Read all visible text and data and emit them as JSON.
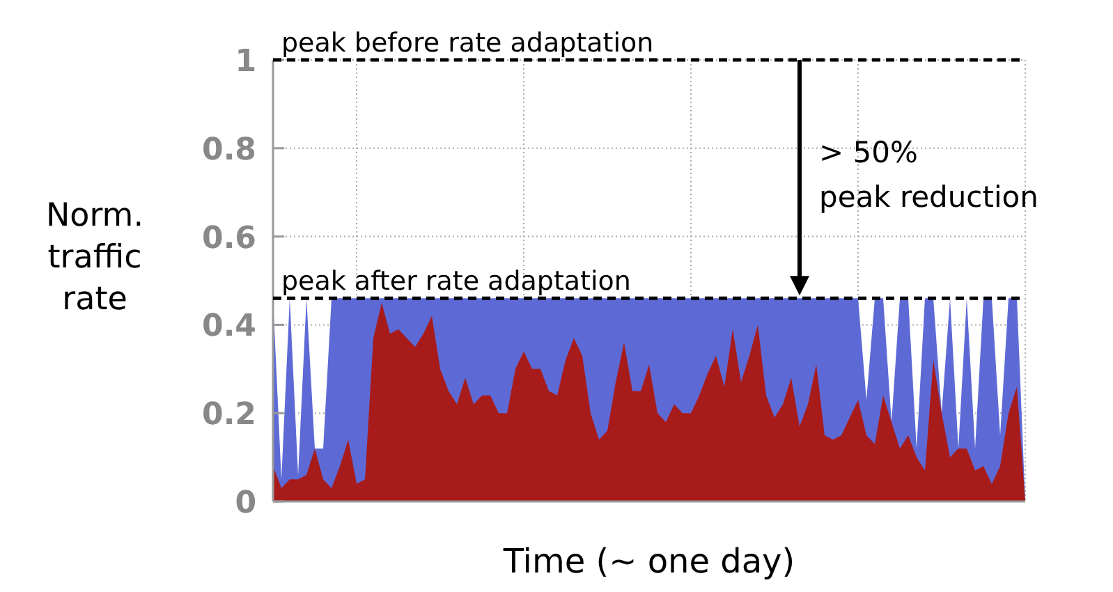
{
  "chart_data": {
    "type": "area",
    "xlabel": "Time (~ one day)",
    "ylabel": "Norm.\ntraffic\nrate",
    "categories": [
      null,
      null,
      null,
      null,
      null,
      null,
      null,
      null,
      null,
      null,
      null,
      null,
      null,
      null,
      null,
      null,
      null,
      null,
      null,
      null,
      null,
      null,
      null,
      null,
      null,
      null,
      null,
      null,
      null,
      null,
      null,
      null,
      null,
      null,
      null,
      null,
      null,
      null,
      null,
      null,
      null,
      null,
      null,
      null,
      null,
      null,
      null,
      null,
      null,
      null,
      null,
      null,
      null,
      null,
      null,
      null,
      null,
      null,
      null,
      null,
      null,
      null,
      null,
      null,
      null,
      null,
      null,
      null,
      null,
      null,
      null,
      null,
      null,
      null,
      null,
      null,
      null,
      null,
      null,
      null,
      null,
      null,
      null,
      null,
      null,
      null,
      null,
      null,
      null,
      null,
      null
    ],
    "ylim": [
      0,
      1
    ],
    "yticks": [
      0,
      0.2,
      0.4,
      0.6,
      0.8,
      1
    ],
    "grid": true,
    "series": [
      {
        "color": "#5d6ad6",
        "values": [
          0.46,
          0.05,
          0.46,
          0.06,
          0.46,
          0.12,
          0.12,
          0.46,
          0.46,
          0.46,
          0.46,
          0.46,
          0.46,
          0.46,
          0.46,
          0.46,
          0.46,
          0.46,
          0.46,
          0.46,
          0.46,
          0.46,
          0.46,
          0.46,
          0.46,
          0.46,
          0.46,
          0.46,
          0.46,
          0.46,
          0.46,
          0.46,
          0.46,
          0.46,
          0.46,
          0.46,
          0.46,
          0.46,
          0.46,
          0.46,
          0.46,
          0.46,
          0.46,
          0.46,
          0.46,
          0.46,
          0.46,
          0.46,
          0.46,
          0.46,
          0.46,
          0.46,
          0.46,
          0.46,
          0.46,
          0.46,
          0.46,
          0.46,
          0.46,
          0.46,
          0.46,
          0.46,
          0.46,
          0.46,
          0.46,
          0.46,
          0.46,
          0.46,
          0.46,
          0.46,
          0.46,
          0.23,
          0.46,
          0.46,
          0.18,
          0.46,
          0.46,
          0.12,
          0.46,
          0.46,
          0.2,
          0.46,
          0.12,
          0.46,
          0.12,
          0.46,
          0.46,
          0.15,
          0.46,
          0.46,
          0
        ]
      },
      {
        "color": "#a81b1b",
        "values": [
          0.08,
          0.03,
          0.05,
          0.05,
          0.06,
          0.12,
          0.05,
          0.03,
          0.08,
          0.14,
          0.04,
          0.05,
          0.37,
          0.45,
          0.38,
          0.39,
          0.37,
          0.35,
          0.38,
          0.42,
          0.3,
          0.25,
          0.22,
          0.28,
          0.22,
          0.24,
          0.24,
          0.2,
          0.2,
          0.3,
          0.34,
          0.3,
          0.3,
          0.25,
          0.24,
          0.32,
          0.37,
          0.33,
          0.2,
          0.14,
          0.16,
          0.27,
          0.36,
          0.25,
          0.25,
          0.31,
          0.2,
          0.18,
          0.22,
          0.2,
          0.2,
          0.24,
          0.29,
          0.33,
          0.26,
          0.39,
          0.27,
          0.33,
          0.4,
          0.24,
          0.19,
          0.22,
          0.28,
          0.17,
          0.22,
          0.31,
          0.15,
          0.14,
          0.15,
          0.19,
          0.23,
          0.15,
          0.13,
          0.24,
          0.18,
          0.12,
          0.15,
          0.1,
          0.07,
          0.32,
          0.2,
          0.1,
          0.12,
          0.12,
          0.07,
          0.08,
          0.04,
          0.08,
          0.2,
          0.26,
          0
        ]
      }
    ],
    "ref_lines": [
      {
        "axis": "y",
        "value": 1,
        "label": "peak before rate adaptation",
        "color": "#000000",
        "line_style": "dashed"
      },
      {
        "axis": "y",
        "value": 0.46,
        "label": "peak after rate adaptation",
        "color": "#000000",
        "line_style": "dashed"
      }
    ],
    "annotations": [
      "> 50%\npeak reduction"
    ]
  }
}
